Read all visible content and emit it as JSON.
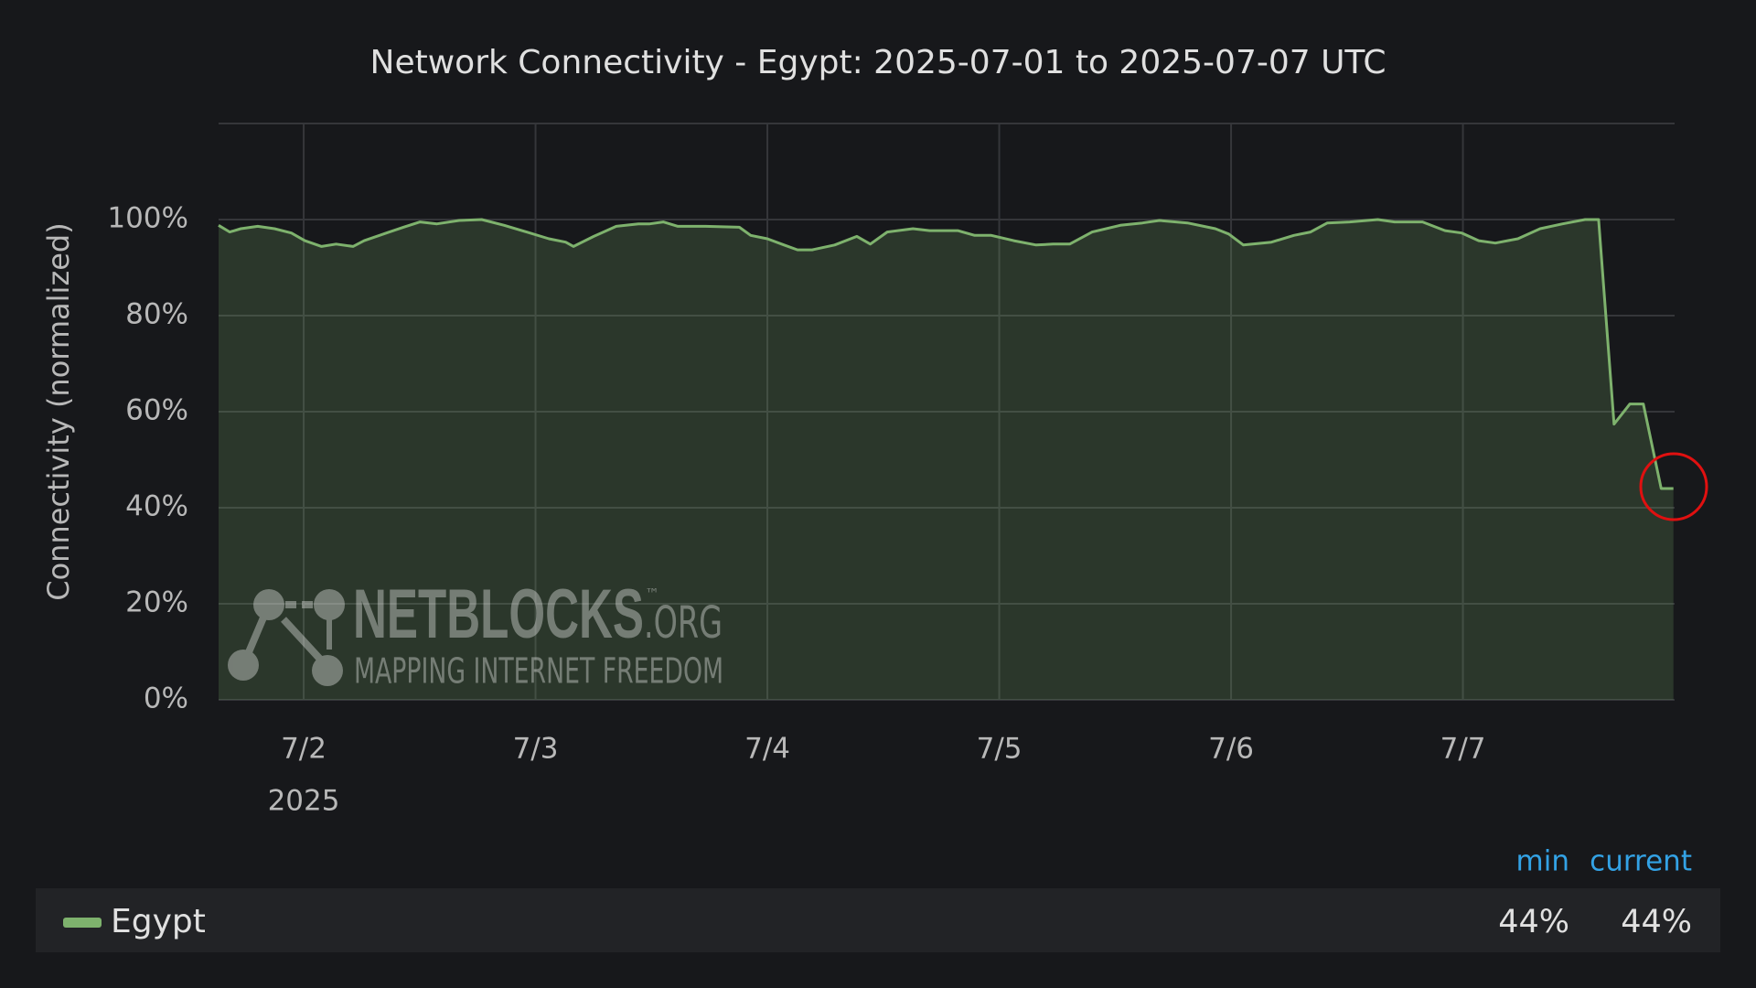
{
  "chart_data": {
    "type": "area",
    "title": "Network Connectivity - Egypt: 2025-07-01 to 2025-07-07 UTC",
    "y_label": "Connectivity (normalized)",
    "x_year_label": "2025",
    "x": [
      1.633,
      1.681,
      1.729,
      1.802,
      1.874,
      1.947,
      2.005,
      2.077,
      2.14,
      2.213,
      2.261,
      2.357,
      2.43,
      2.502,
      2.575,
      2.671,
      2.768,
      2.865,
      2.961,
      3.058,
      3.13,
      3.164,
      3.251,
      3.348,
      3.444,
      3.493,
      3.551,
      3.614,
      3.734,
      3.879,
      3.928,
      4.0,
      4.072,
      4.13,
      4.193,
      4.29,
      4.386,
      4.444,
      4.517,
      4.628,
      4.7,
      4.821,
      4.894,
      4.966,
      5.063,
      5.159,
      5.232,
      5.304,
      5.401,
      5.522,
      5.618,
      5.691,
      5.812,
      5.932,
      5.99,
      6.053,
      6.174,
      6.271,
      6.343,
      6.415,
      6.512,
      6.633,
      6.705,
      6.826,
      6.923,
      6.995,
      7.068,
      7.14,
      7.237,
      7.333,
      7.43,
      7.527,
      7.585,
      7.652,
      7.72,
      7.778,
      7.855,
      7.908
    ],
    "series": [
      {
        "name": "Egypt",
        "color": "#7eb26d",
        "values": [
          98.8,
          97.4,
          98.1,
          98.6,
          98.1,
          97.2,
          95.6,
          94.4,
          94.9,
          94.4,
          95.6,
          97.2,
          98.4,
          99.5,
          99.1,
          99.8,
          100,
          98.8,
          97.4,
          96.0,
          95.3,
          94.4,
          96.5,
          98.6,
          99.1,
          99.1,
          99.5,
          98.6,
          98.6,
          98.4,
          96.7,
          96.0,
          94.7,
          93.7,
          93.7,
          94.7,
          96.5,
          94.9,
          97.4,
          98.1,
          97.7,
          97.7,
          96.7,
          96.7,
          95.6,
          94.7,
          94.9,
          94.9,
          97.4,
          98.8,
          99.3,
          99.8,
          99.3,
          98.1,
          97.0,
          94.7,
          95.3,
          96.7,
          97.4,
          99.3,
          99.5,
          100,
          99.5,
          99.5,
          97.7,
          97.2,
          95.6,
          95.1,
          96.0,
          98.1,
          99.1,
          100,
          100,
          57.4,
          61.6,
          61.6,
          44,
          44
        ]
      }
    ],
    "xlim": [
      1.633,
      7.913
    ],
    "xticks": [
      {
        "value": 2,
        "label": "7/2"
      },
      {
        "value": 3,
        "label": "7/3"
      },
      {
        "value": 4,
        "label": "7/4"
      },
      {
        "value": 5,
        "label": "7/5"
      },
      {
        "value": 6,
        "label": "7/6"
      },
      {
        "value": 7,
        "label": "7/7"
      }
    ],
    "ylim": [
      0,
      120
    ],
    "yticks": [
      {
        "value": 0,
        "label": "0%"
      },
      {
        "value": 20,
        "label": "20%"
      },
      {
        "value": 40,
        "label": "40%"
      },
      {
        "value": 60,
        "label": "60%"
      },
      {
        "value": 80,
        "label": "80%"
      },
      {
        "value": 100,
        "label": "100%"
      }
    ],
    "grid": true,
    "legend": {
      "headers": [
        "min",
        "current"
      ],
      "stats": [
        "44%",
        "44%"
      ]
    },
    "watermark": {
      "name": "NETBLOCKS",
      "tm": "™",
      "domain": ".ORG",
      "tagline": "MAPPING INTERNET FREEDOM"
    }
  }
}
